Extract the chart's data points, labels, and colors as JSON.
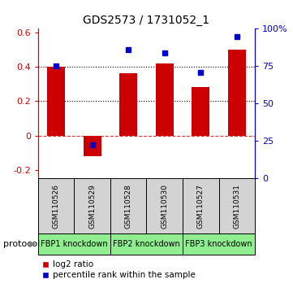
{
  "title": "GDS2573 / 1731052_1",
  "categories": [
    "GSM110526",
    "GSM110529",
    "GSM110528",
    "GSM110530",
    "GSM110527",
    "GSM110531"
  ],
  "log2_ratio": [
    0.4,
    -0.12,
    0.36,
    0.42,
    0.28,
    0.5
  ],
  "percentile_rank_right": [
    75,
    22.5,
    86,
    84,
    71,
    95
  ],
  "bar_color": "#cc0000",
  "dot_color": "#0000cc",
  "ylim_left": [
    -0.25,
    0.62
  ],
  "ylim_right": [
    0,
    100
  ],
  "yticks_left": [
    -0.2,
    0.0,
    0.2,
    0.4,
    0.6
  ],
  "yticks_right": [
    0,
    25,
    50,
    75,
    100
  ],
  "ytick_labels_left": [
    "-0.2",
    "0",
    "0.2",
    "0.4",
    "0.6"
  ],
  "ytick_labels_right": [
    "0",
    "25",
    "50",
    "75",
    "100%"
  ],
  "hline_dotted": [
    0.2,
    0.4
  ],
  "hline_dashed": 0.0,
  "protocol_groups": [
    {
      "label": "FBP1 knockdown",
      "cols": [
        0,
        1
      ],
      "color": "#90ee90"
    },
    {
      "label": "FBP2 knockdown",
      "cols": [
        2,
        3
      ],
      "color": "#90ee90"
    },
    {
      "label": "FBP3 knockdown",
      "cols": [
        4,
        5
      ],
      "color": "#90ee90"
    }
  ],
  "protocol_label": "protocol",
  "legend_log2": "log2 ratio",
  "legend_pct": "percentile rank within the sample",
  "sample_box_color": "#d3d3d3",
  "bar_width": 0.5
}
